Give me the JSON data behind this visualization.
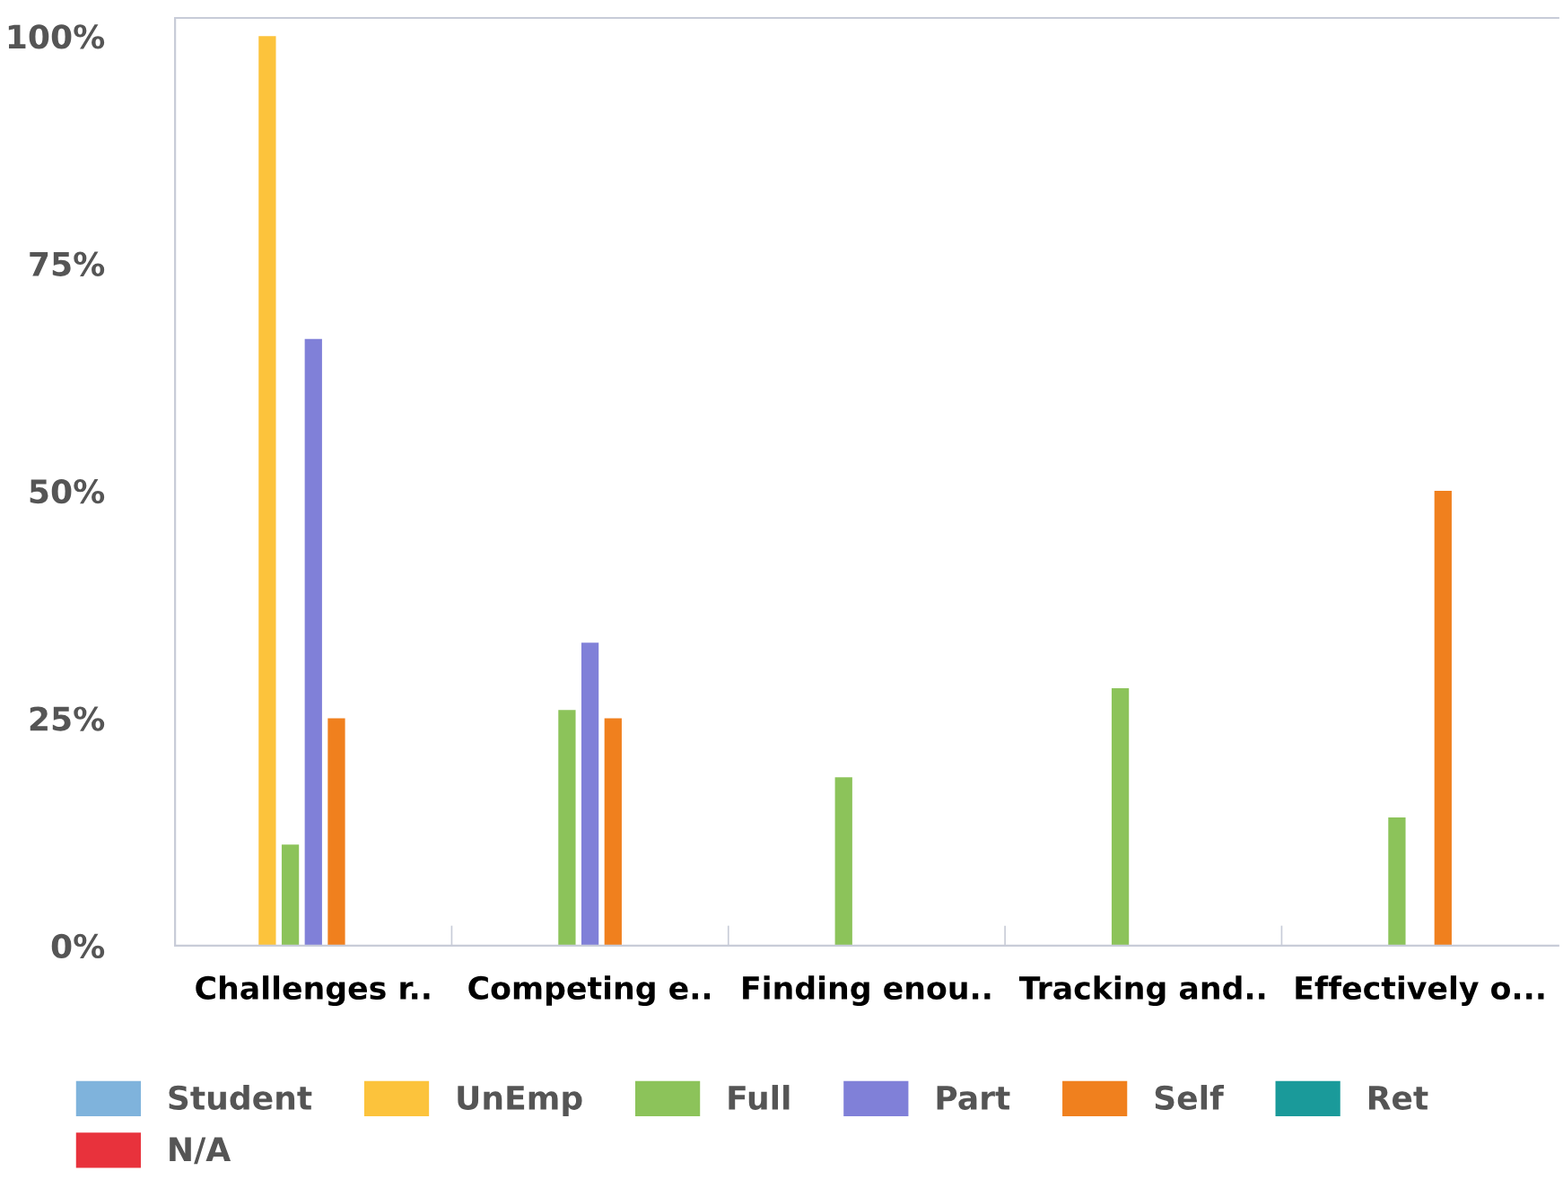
{
  "chart_data": {
    "type": "bar",
    "categories": [
      "Challenges r..",
      "Competing e..",
      "Finding enou..",
      "Tracking and..",
      "Effectively o..."
    ],
    "series": [
      {
        "name": "Student",
        "color": "#7fb3dc",
        "values": [
          0,
          0,
          0,
          0,
          0
        ]
      },
      {
        "name": "UnEmp",
        "color": "#fcc33c",
        "values": [
          100,
          0,
          0,
          0,
          0
        ]
      },
      {
        "name": "Full",
        "color": "#8cc35a",
        "values": [
          11.1,
          25.9,
          18.5,
          28.3,
          14.1
        ]
      },
      {
        "name": "Part",
        "color": "#8080d8",
        "values": [
          66.7,
          33.3,
          0,
          0,
          0
        ]
      },
      {
        "name": "Self",
        "color": "#f0801e",
        "values": [
          25,
          25,
          0,
          0,
          50
        ]
      },
      {
        "name": "Ret",
        "color": "#1a9a9a",
        "values": [
          0,
          0,
          0,
          0,
          0
        ]
      },
      {
        "name": "N/A",
        "color": "#e8323c",
        "values": [
          0,
          0,
          0,
          0,
          0
        ]
      }
    ],
    "ylim": [
      0,
      102
    ],
    "yticks": [
      {
        "value": 0,
        "label": "0%"
      },
      {
        "value": 25,
        "label": "25%"
      },
      {
        "value": 50,
        "label": "50%"
      },
      {
        "value": 75,
        "label": "75%"
      },
      {
        "value": 100,
        "label": "100%"
      }
    ],
    "grid": false,
    "legend": "bottom"
  }
}
